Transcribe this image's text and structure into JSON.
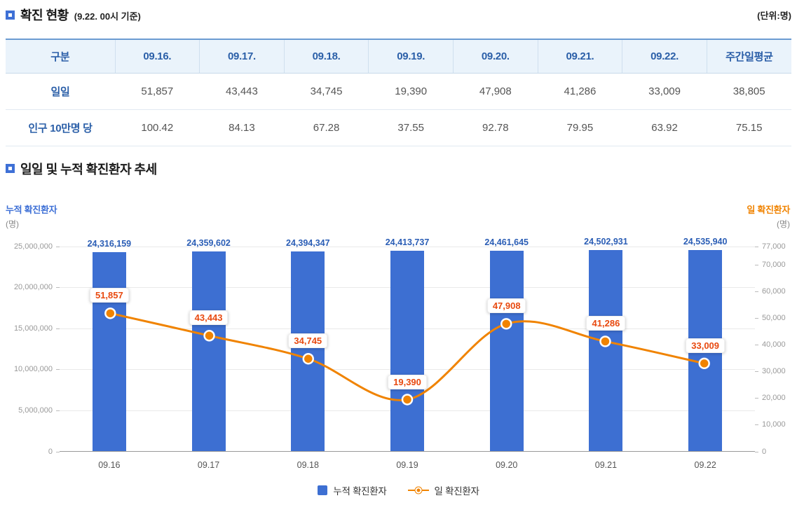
{
  "unit_label": "(단위:명)",
  "section1": {
    "title": "확진 현황",
    "subtitle": "(9.22. 00시 기준)"
  },
  "section2": {
    "title": "일일 및 누적 확진환자 추세"
  },
  "table": {
    "headers": [
      "구분",
      "09.16.",
      "09.17.",
      "09.18.",
      "09.19.",
      "09.20.",
      "09.21.",
      "09.22.",
      "주간일평균"
    ],
    "rows": [
      {
        "label": "일일",
        "values": [
          "51,857",
          "43,443",
          "34,745",
          "19,390",
          "47,908",
          "41,286",
          "33,009",
          "38,805"
        ]
      },
      {
        "label": "인구 10만명 당",
        "values": [
          "100.42",
          "84.13",
          "67.28",
          "37.55",
          "92.78",
          "79.95",
          "63.92",
          "75.15"
        ]
      }
    ]
  },
  "chart_data": {
    "type": "combo",
    "categories": [
      "09.16",
      "09.17",
      "09.18",
      "09.19",
      "09.20",
      "09.21",
      "09.22"
    ],
    "series": [
      {
        "name": "누적 확진환자",
        "type": "bar",
        "axis": "left",
        "color": "#3d6fd2",
        "values": [
          24316159,
          24359602,
          24394347,
          24413737,
          24461645,
          24502931,
          24535940
        ]
      },
      {
        "name": "일 확진환자",
        "type": "line",
        "axis": "right",
        "color": "#f08300",
        "values": [
          51857,
          43443,
          34745,
          19390,
          47908,
          41286,
          33009
        ]
      }
    ],
    "left_axis": {
      "title": "누적 확진환자",
      "unit": "(명)",
      "min": 0,
      "max": 25000000,
      "ticks": [
        0,
        5000000,
        10000000,
        15000000,
        20000000,
        25000000
      ]
    },
    "right_axis": {
      "title": "일 확진환자",
      "unit": "(명)",
      "min": 0,
      "max": 77000,
      "ticks": [
        0,
        10000,
        20000,
        30000,
        40000,
        50000,
        60000,
        70000,
        77000
      ]
    },
    "grid": "horizontal",
    "legend_position": "bottom"
  },
  "colors": {
    "bar": "#3d6fd2",
    "bar-label": "#2a5db5",
    "line": "#f08300",
    "point-label": "#e8490f",
    "accent-blue": "#3e70d6",
    "accent-orange": "#f08300",
    "table-header-bg": "#eaf3fb",
    "table-header-text": "#2b5fa8"
  }
}
